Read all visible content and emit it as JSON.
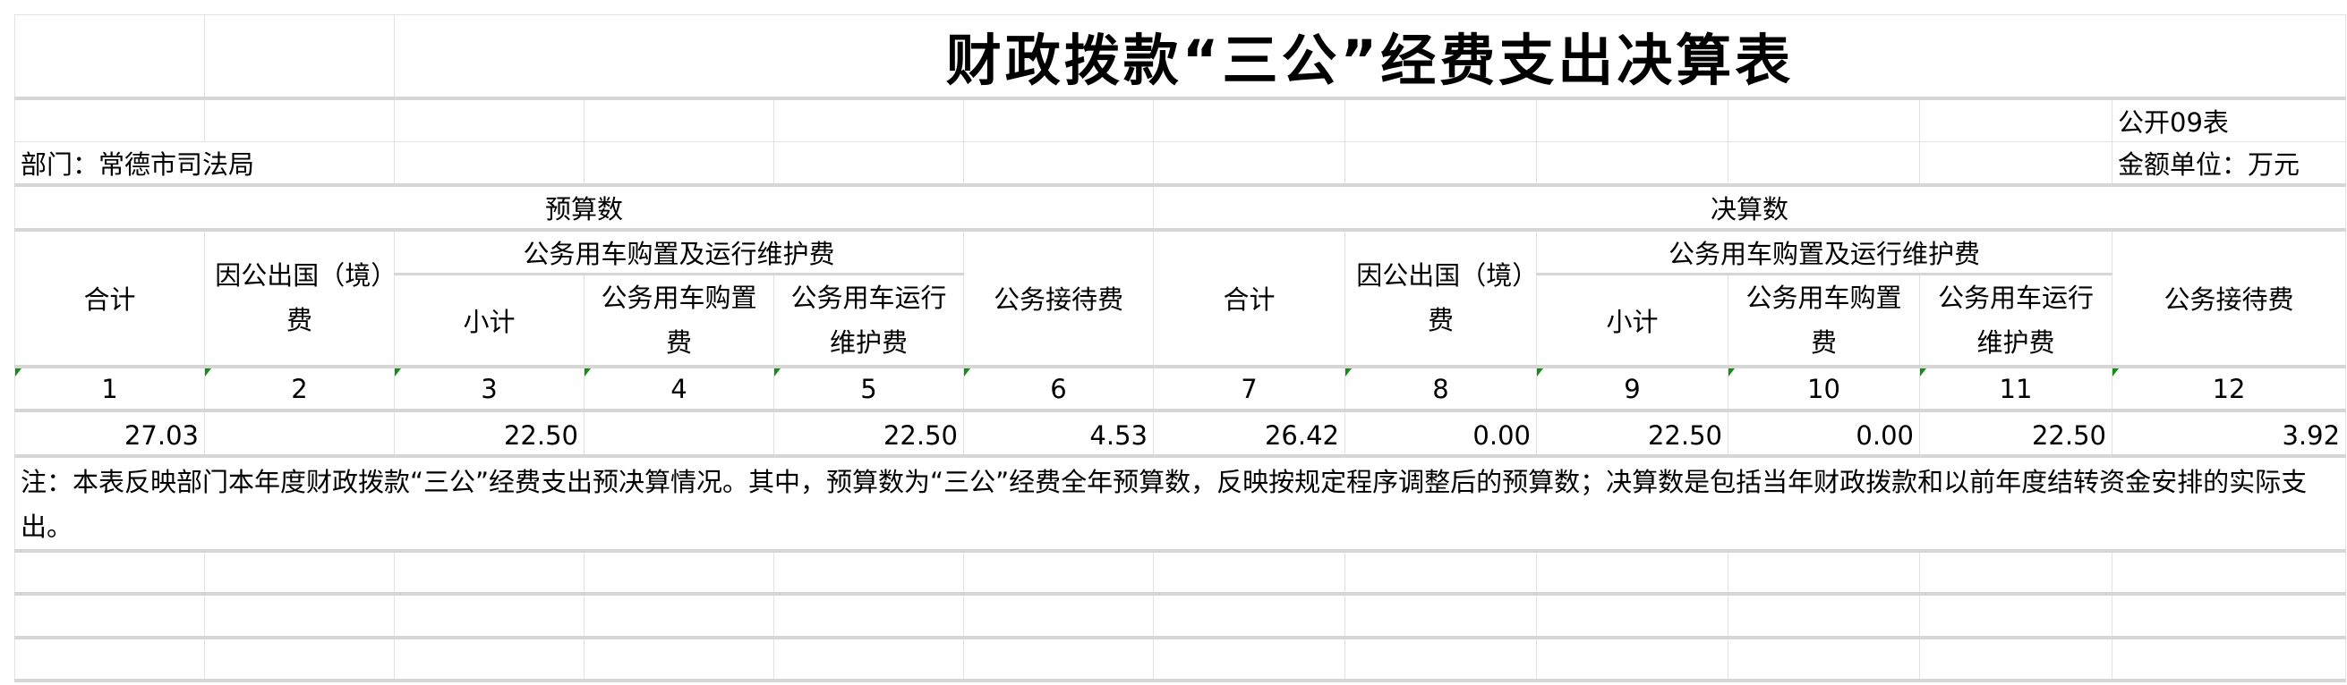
{
  "title": "财政拨款“三公”经费支出决算表",
  "table_no": "公开09表",
  "department": "部门：常德市司法局",
  "unit": "金额单位：万元",
  "groups": {
    "budget": "预算数",
    "final": "决算数"
  },
  "headers": {
    "total": "合计",
    "abroad": "因公出国（境）费",
    "vehicle_group": "公务用车购置及运行维护费",
    "subtotal": "小计",
    "vehicle_purchase": "公务用车购置费",
    "vehicle_operation": "公务用车运行维护费",
    "reception": "公务接待费"
  },
  "column_numbers": [
    "1",
    "2",
    "3",
    "4",
    "5",
    "6",
    "7",
    "8",
    "9",
    "10",
    "11",
    "12"
  ],
  "values": [
    "27.03",
    "",
    "22.50",
    "",
    "22.50",
    "4.53",
    "26.42",
    "0.00",
    "22.50",
    "0.00",
    "22.50",
    "3.92"
  ],
  "note": "注：本表反映部门本年度财政拨款“三公”经费支出预决算情况。其中，预算数为“三公”经费全年预算数，反映按规定程序调整后的预算数；决算数是包括当年财政拨款和以前年度结转资金安排的实际支出。",
  "indicator_color": "#1a8a1a"
}
